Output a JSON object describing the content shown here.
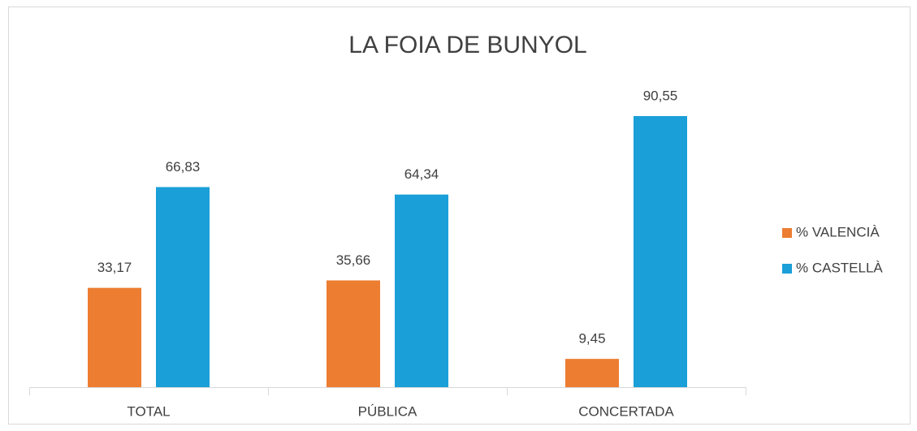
{
  "chart_data": {
    "type": "bar",
    "title": "LA FOIA DE BUNYOL",
    "categories": [
      "TOTAL",
      "PÚBLICA",
      "CONCERTADA"
    ],
    "series": [
      {
        "name": "% VALENCIÀ",
        "color": "#ed7d31",
        "values": [
          33.17,
          35.66,
          9.45
        ],
        "value_labels": [
          "33,17",
          "35,66",
          "9,45"
        ]
      },
      {
        "name": "% CASTELLÀ",
        "color": "#1a9fd8",
        "values": [
          66.83,
          64.34,
          90.55
        ],
        "value_labels": [
          "66,83",
          "64,34",
          "90,55"
        ]
      }
    ],
    "legend": "right"
  }
}
